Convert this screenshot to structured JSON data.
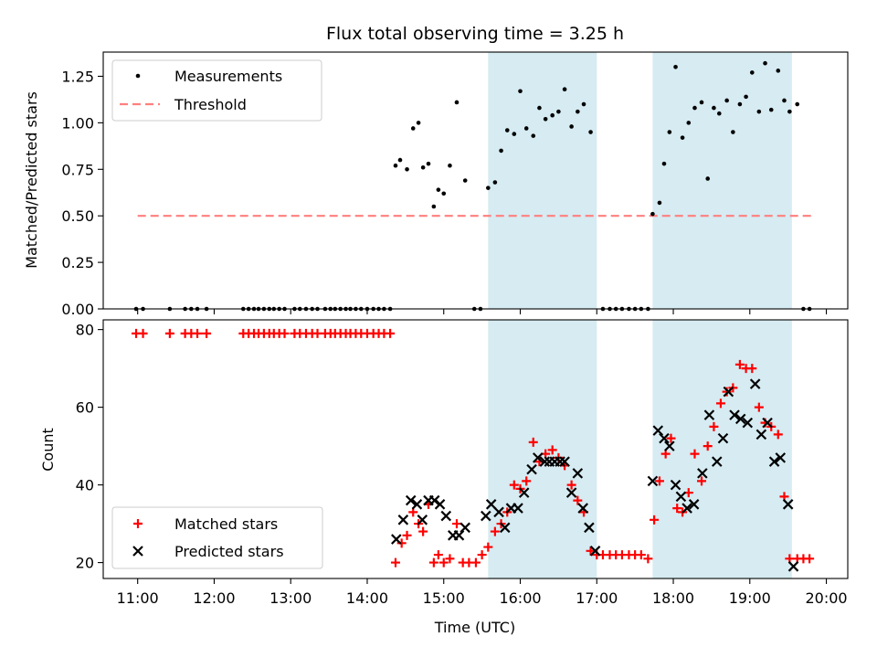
{
  "chart_data": [
    {
      "type": "scatter",
      "title": "Flux total observing time = 3.25 h",
      "ylabel": "Matched/Predicted stars",
      "xlabel": "",
      "xlim": [
        10.55,
        20.28
      ],
      "ylim": [
        0,
        1.38
      ],
      "yticks": [
        0,
        0.25,
        0.5,
        0.75,
        1.0,
        1.25
      ],
      "ytick_labels": [
        "0.00",
        "0.25",
        "0.50",
        "0.75",
        "1.00",
        "1.25"
      ],
      "xticks": [
        11,
        12,
        13,
        14,
        15,
        16,
        17,
        18,
        19,
        20
      ],
      "legend": {
        "placement": "top-left",
        "entries": [
          "Measurements",
          "Threshold"
        ]
      },
      "bands": [
        [
          15.58,
          17.0
        ],
        [
          17.73,
          19.55
        ]
      ],
      "series": [
        {
          "name": "Measurements",
          "color": "#000000",
          "marker": "dot",
          "x": [
            10.98,
            11.07,
            11.42,
            11.62,
            11.7,
            11.78,
            11.9,
            12.38,
            12.45,
            12.52,
            12.58,
            12.65,
            12.72,
            12.78,
            12.85,
            12.92,
            13.05,
            13.12,
            13.2,
            13.28,
            13.35,
            13.45,
            13.52,
            13.58,
            13.65,
            13.72,
            13.78,
            13.85,
            13.92,
            14.0,
            14.08,
            14.15,
            14.22,
            14.3,
            14.37,
            14.43,
            14.52,
            14.6,
            14.67,
            14.73,
            14.8,
            14.87,
            14.93,
            15.0,
            15.08,
            15.17,
            15.28,
            15.4,
            15.48,
            15.58,
            15.67,
            15.75,
            15.83,
            15.92,
            16.0,
            16.08,
            16.17,
            16.25,
            16.33,
            16.42,
            16.5,
            16.58,
            16.67,
            16.75,
            16.83,
            16.92,
            17.08,
            17.17,
            17.25,
            17.33,
            17.42,
            17.5,
            17.58,
            17.67,
            17.73,
            17.82,
            17.88,
            17.95,
            18.03,
            18.12,
            18.2,
            18.28,
            18.37,
            18.45,
            18.53,
            18.6,
            18.7,
            18.78,
            18.87,
            18.95,
            19.03,
            19.12,
            19.2,
            19.28,
            19.37,
            19.45,
            19.52,
            19.62,
            19.7,
            19.78
          ],
          "y": [
            0,
            0,
            0,
            0,
            0,
            0,
            0,
            0,
            0,
            0,
            0,
            0,
            0,
            0,
            0,
            0,
            0,
            0,
            0,
            0,
            0,
            0,
            0,
            0,
            0,
            0,
            0,
            0,
            0,
            0,
            0,
            0,
            0,
            0,
            0.77,
            0.8,
            0.75,
            0.97,
            1.0,
            0.76,
            0.78,
            0.55,
            0.64,
            0.62,
            0.77,
            1.11,
            0.69,
            0,
            0,
            0.65,
            0.68,
            0.85,
            0.96,
            0.94,
            1.17,
            0.97,
            0.93,
            1.08,
            1.02,
            1.04,
            1.06,
            1.18,
            0.98,
            1.06,
            1.1,
            0.95,
            0,
            0,
            0,
            0,
            0,
            0,
            0,
            0,
            0.51,
            0.57,
            0.78,
            0.95,
            1.3,
            0.92,
            1.0,
            1.08,
            1.11,
            0.7,
            1.08,
            1.05,
            1.12,
            0.95,
            1.1,
            1.14,
            1.27,
            1.06,
            1.32,
            1.07,
            1.28,
            1.12,
            1.06,
            1.1,
            0,
            0
          ]
        },
        {
          "name": "Threshold",
          "color": "#ff7f7f",
          "style": "dashed",
          "x": [
            11.0,
            19.83
          ],
          "y": [
            0.5,
            0.5
          ]
        }
      ]
    },
    {
      "type": "scatter",
      "title": "",
      "ylabel": "Count",
      "xlabel": "Time (UTC)",
      "xlim": [
        10.55,
        20.28
      ],
      "ylim": [
        15.9,
        82.5
      ],
      "yticks": [
        20,
        40,
        60,
        80
      ],
      "ytick_labels": [
        "20",
        "40",
        "60",
        "80"
      ],
      "xticks": [
        11,
        12,
        13,
        14,
        15,
        16,
        17,
        18,
        19,
        20
      ],
      "xtick_labels": [
        "11:00",
        "12:00",
        "13:00",
        "14:00",
        "15:00",
        "16:00",
        "17:00",
        "18:00",
        "19:00",
        "20:00"
      ],
      "legend": {
        "placement": "bottom-left",
        "entries": [
          "Matched stars",
          "Predicted stars"
        ]
      },
      "bands": [
        [
          15.58,
          17.0
        ],
        [
          17.73,
          19.55
        ]
      ],
      "series": [
        {
          "name": "Matched stars",
          "color": "#ff0000",
          "marker": "plus",
          "x": [
            10.98,
            11.07,
            11.42,
            11.62,
            11.7,
            11.78,
            11.9,
            12.38,
            12.45,
            12.52,
            12.58,
            12.65,
            12.72,
            12.78,
            12.85,
            12.92,
            13.05,
            13.12,
            13.2,
            13.28,
            13.35,
            13.45,
            13.52,
            13.58,
            13.65,
            13.72,
            13.78,
            13.85,
            13.92,
            14.0,
            14.08,
            14.15,
            14.22,
            14.3,
            14.37,
            14.45,
            14.52,
            14.6,
            14.67,
            14.73,
            14.8,
            14.87,
            14.93,
            15.0,
            15.08,
            15.17,
            15.25,
            15.33,
            15.42,
            15.5,
            15.58,
            15.67,
            15.75,
            15.83,
            15.92,
            16.0,
            16.08,
            16.17,
            16.25,
            16.33,
            16.42,
            16.5,
            16.58,
            16.67,
            16.75,
            16.83,
            16.92,
            17.0,
            17.08,
            17.17,
            17.25,
            17.33,
            17.42,
            17.5,
            17.58,
            17.67,
            17.75,
            17.82,
            17.9,
            17.97,
            18.05,
            18.12,
            18.2,
            18.28,
            18.37,
            18.45,
            18.53,
            18.62,
            18.7,
            18.78,
            18.87,
            18.95,
            19.03,
            19.12,
            19.2,
            19.28,
            19.37,
            19.45,
            19.52,
            19.62,
            19.7,
            19.78
          ],
          "y": [
            79,
            79,
            79,
            79,
            79,
            79,
            79,
            79,
            79,
            79,
            79,
            79,
            79,
            79,
            79,
            79,
            79,
            79,
            79,
            79,
            79,
            79,
            79,
            79,
            79,
            79,
            79,
            79,
            79,
            79,
            79,
            79,
            79,
            79,
            20,
            25,
            27,
            33,
            30,
            28,
            35,
            20,
            22,
            20,
            21,
            30,
            20,
            20,
            20,
            22,
            24,
            28,
            30,
            33,
            40,
            39,
            41,
            51,
            46,
            48,
            49,
            47,
            45,
            40,
            36,
            33,
            23,
            22,
            22,
            22,
            22,
            22,
            22,
            22,
            22,
            21,
            31,
            41,
            48,
            52,
            34,
            33,
            38,
            48,
            41,
            50,
            55,
            61,
            64,
            65,
            71,
            70,
            70,
            60,
            56,
            55,
            53,
            37,
            21,
            21,
            21,
            21
          ]
        },
        {
          "name": "Predicted stars",
          "color": "#000000",
          "marker": "x",
          "x": [
            14.38,
            14.47,
            14.57,
            14.65,
            14.72,
            14.8,
            14.88,
            14.95,
            15.03,
            15.12,
            15.2,
            15.28,
            15.55,
            15.62,
            15.72,
            15.8,
            15.88,
            15.97,
            16.05,
            16.15,
            16.23,
            16.32,
            16.38,
            16.45,
            16.52,
            16.58,
            16.67,
            16.75,
            16.82,
            16.9,
            16.98,
            17.73,
            17.8,
            17.88,
            17.95,
            18.03,
            18.1,
            18.18,
            18.27,
            18.38,
            18.47,
            18.57,
            18.65,
            18.72,
            18.8,
            18.88,
            18.97,
            19.07,
            19.15,
            19.23,
            19.32,
            19.4,
            19.5,
            19.57
          ],
          "y": [
            26,
            31,
            36,
            35,
            31,
            36,
            36,
            35,
            32,
            27,
            27,
            29,
            32,
            35,
            33,
            29,
            34,
            34,
            38,
            44,
            47,
            46,
            46,
            46,
            46,
            46,
            38,
            43,
            34,
            29,
            23,
            41,
            54,
            52,
            50,
            40,
            37,
            34,
            35,
            43,
            58,
            46,
            52,
            64,
            58,
            57,
            56,
            66,
            53,
            56,
            46,
            47,
            35,
            19
          ]
        }
      ]
    }
  ]
}
